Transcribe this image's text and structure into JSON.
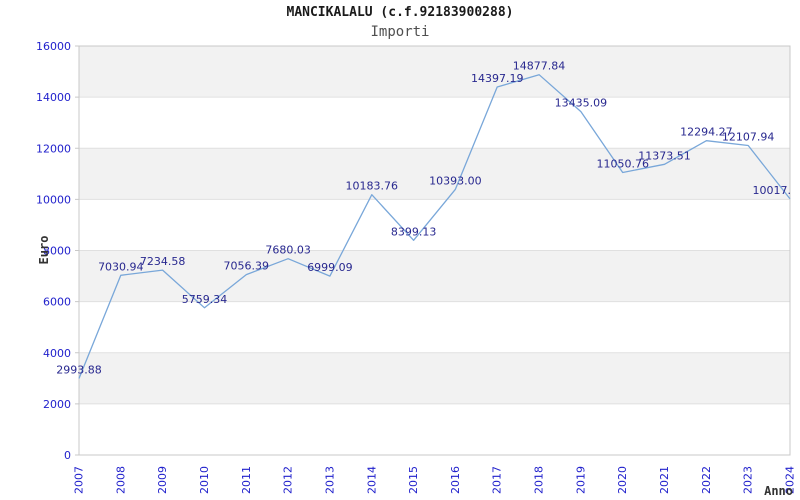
{
  "header": {
    "title": "MANCIKALALU (c.f.92183900288)",
    "subtitle": "Importi"
  },
  "chart_data": {
    "type": "line",
    "title": "MANCIKALALU (c.f.92183900288)",
    "subtitle": "Importi",
    "xlabel": "Anno",
    "ylabel": "Euro",
    "x": [
      "2007",
      "2008",
      "2009",
      "2010",
      "2011",
      "2012",
      "2013",
      "2014",
      "2015",
      "2016",
      "2017",
      "2018",
      "2019",
      "2020",
      "2021",
      "2022",
      "2023",
      "2024"
    ],
    "series": [
      {
        "name": "Importi",
        "values": [
          2993.88,
          7030.94,
          7234.58,
          5759.34,
          7056.39,
          7680.03,
          6999.09,
          10183.76,
          8399.13,
          10393.0,
          14397.19,
          14877.84,
          13435.09,
          11050.76,
          11373.51,
          12294.27,
          12107.94,
          10017
        ],
        "point_labels": [
          "2993.88",
          "7030.94",
          "7234.58",
          "5759.34",
          "7056.39",
          "7680.03",
          "6999.09",
          "10183.76",
          "8399.13",
          "10393.00",
          "14397.19",
          "14877.84",
          "13435.09",
          "11050.76",
          "11373.51",
          "12294.27",
          "12107.94",
          "10017."
        ]
      }
    ],
    "ylim": [
      0,
      16000
    ],
    "ytick_step": 2000,
    "ytick_labels": [
      "0",
      "2000",
      "4000",
      "6000",
      "8000",
      "10000",
      "12000",
      "14000",
      "16000"
    ],
    "legend": "none",
    "grid": "alternating-horizontal-bands",
    "colors": {
      "line": "#79a7d9",
      "tick_label": "#2121cc",
      "point_label": "#28288f",
      "band": "#f2f2f2",
      "gridline": "#e0e0e0",
      "border": "#c8c8c8",
      "title": "#1a1a1a",
      "subtitle": "#4f4f4f",
      "axis_title": "#333333",
      "background": "#ffffff"
    }
  }
}
